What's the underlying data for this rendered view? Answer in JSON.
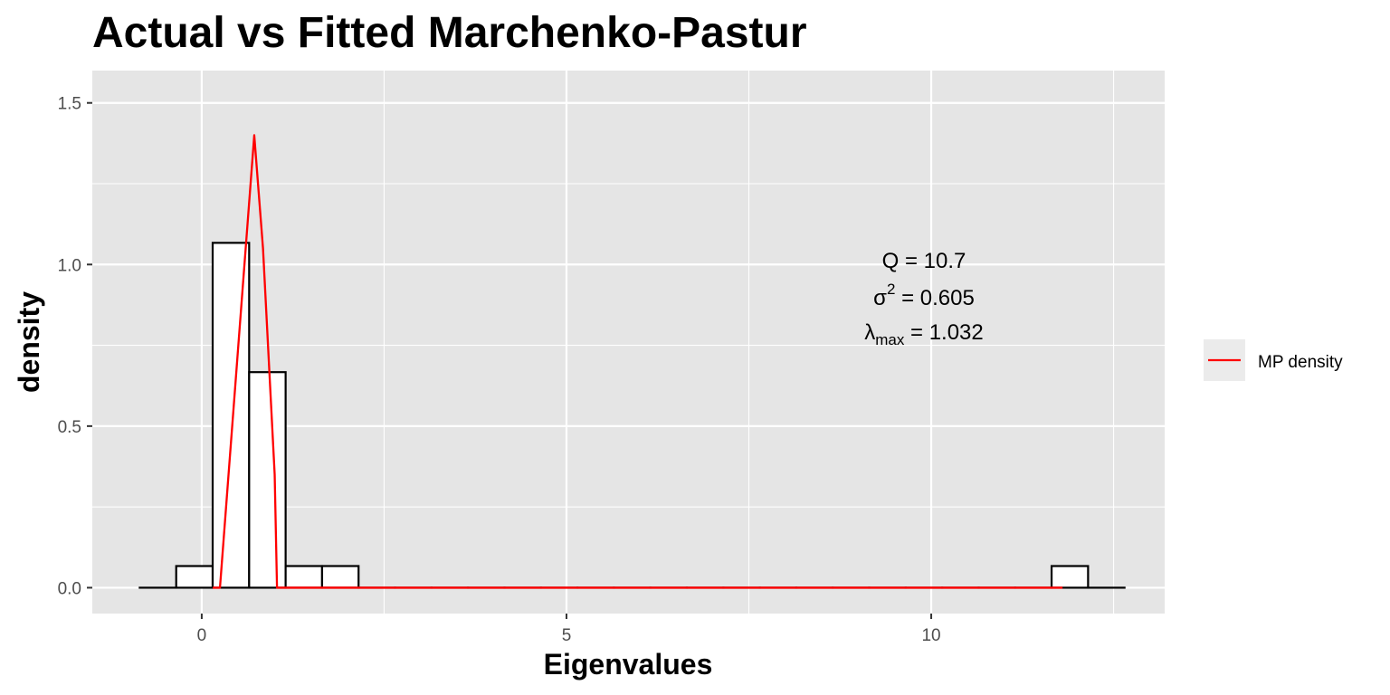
{
  "chart_data": {
    "type": "bar",
    "title": "Actual vs Fitted Marchenko-Pastur",
    "xlabel": "Eigenvalues",
    "ylabel": "density",
    "xlim": [
      -1.5,
      13.2
    ],
    "ylim": [
      -0.08,
      1.6
    ],
    "xticks": [
      0,
      5,
      10
    ],
    "yticks": [
      0.0,
      0.5,
      1.0,
      1.5
    ],
    "xtick_labels": [
      "0",
      "5",
      "10"
    ],
    "ytick_labels": [
      "0.0",
      "0.5",
      "1.0",
      "1.5"
    ],
    "minor_gridlines_x": [
      2.5,
      7.5,
      12.5
    ],
    "minor_gridlines_y": [
      0.25,
      0.75,
      1.25
    ],
    "grid": true,
    "background": "#e5e5e5",
    "histogram": {
      "binwidth": 0.5,
      "bin_left_edges": [
        -0.85,
        -0.35,
        0.15,
        0.65,
        1.15,
        1.65,
        2.15,
        2.65,
        3.15,
        3.65,
        4.15,
        4.65,
        5.15,
        5.65,
        6.15,
        6.65,
        7.15,
        7.65,
        8.15,
        8.65,
        9.15,
        9.65,
        10.15,
        10.65,
        11.15,
        11.65,
        12.15
      ],
      "densities": [
        0,
        0.067,
        1.067,
        0.667,
        0.067,
        0.067,
        0,
        0,
        0,
        0,
        0,
        0,
        0,
        0,
        0,
        0,
        0,
        0,
        0,
        0,
        0,
        0,
        0,
        0,
        0,
        0.067,
        0
      ],
      "fill": "#ffffff",
      "stroke": "#000000"
    },
    "series": [
      {
        "name": "MP density",
        "color": "#ff0000",
        "x": [
          0.15,
          0.25,
          0.72,
          0.84,
          1.0,
          1.032,
          1.1,
          11.8
        ],
        "y": [
          0,
          0,
          1.4,
          1.05,
          0.35,
          0,
          0,
          0
        ]
      }
    ],
    "annotations": {
      "q_text": "Q = 10.7",
      "sigma_symbol": "σ",
      "sigma_power": "2",
      "sigma_value": " = 0.605",
      "lambda_symbol": "λ",
      "lambda_sub": "max",
      "lambda_value": " = 1.032",
      "position": [
        9.3,
        0.88
      ]
    },
    "legend": {
      "position": "right",
      "entries": [
        "MP density"
      ]
    }
  }
}
